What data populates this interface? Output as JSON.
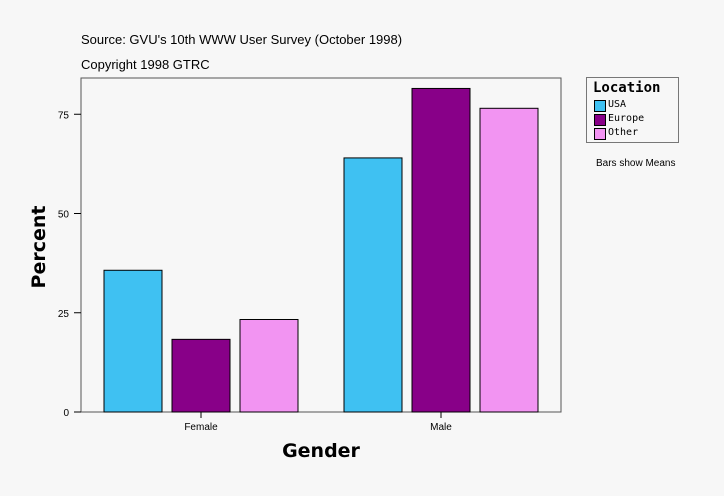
{
  "header": {
    "source": "Source: GVU's 10th WWW User Survey (October 1998)",
    "copyright": "Copyright 1998 GTRC"
  },
  "legend": {
    "title": "Location",
    "items": [
      {
        "label": "USA",
        "color": "#3fc1f2"
      },
      {
        "label": "Europe",
        "color": "#880088"
      },
      {
        "label": "Other",
        "color": "#f294f2"
      }
    ]
  },
  "note": "Bars show Means",
  "chart_data": {
    "type": "bar",
    "xlabel": "Gender",
    "ylabel": "Percent",
    "categories": [
      "Female",
      "Male"
    ],
    "series": [
      {
        "name": "USA",
        "values": [
          35.7,
          64.0
        ],
        "color": "#3fc1f2"
      },
      {
        "name": "Europe",
        "values": [
          18.3,
          81.5
        ],
        "color": "#880088"
      },
      {
        "name": "Other",
        "values": [
          23.3,
          76.5
        ],
        "color": "#f294f2"
      }
    ],
    "yticks": [
      0,
      25,
      50,
      75
    ],
    "ylim": [
      0,
      86
    ],
    "grid": false,
    "legend_position": "right"
  }
}
